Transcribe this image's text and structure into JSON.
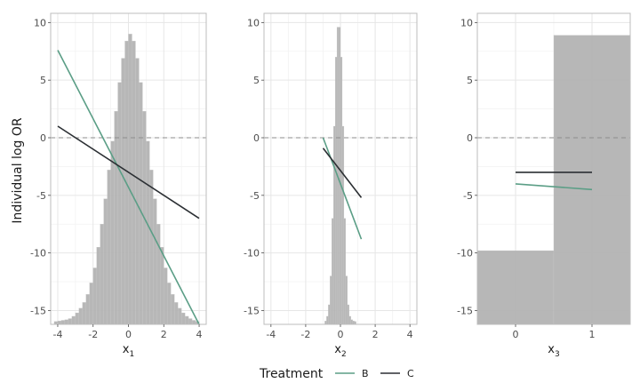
{
  "ylabel": "Individual log OR",
  "legend": {
    "title": "Treatment",
    "placement": "bottom",
    "entries": [
      {
        "label": "B",
        "color": "#5b9e86"
      },
      {
        "label": "C",
        "color": "#2b2f33"
      }
    ]
  },
  "colors": {
    "histogram": "#b3b3b3",
    "grid_major": "#e6e6e6",
    "grid_minor": "#f2f2f2",
    "panel_border": "#bdbdbd",
    "zero_line": "#8c8c8c"
  },
  "chart_data": [
    {
      "type": "line",
      "xlabel": "x",
      "xlabel_sub": "1",
      "xlim": [
        -4.4,
        4.4
      ],
      "ylim": [
        -16.2,
        10.8
      ],
      "xticks": [
        -4,
        -2,
        0,
        2,
        4
      ],
      "xtick_labels": [
        "-4",
        "-2",
        "0",
        "2",
        "4"
      ],
      "yticks": [
        10,
        5,
        0,
        -5,
        -10,
        -15
      ],
      "ytick_labels": [
        "10",
        "5",
        "0",
        "-5",
        "-10",
        "-15"
      ],
      "grid": true,
      "reference_line_y": 0,
      "histogram": {
        "bins": [
          -4.2,
          -4.0,
          -3.8,
          -3.6,
          -3.4,
          -3.2,
          -3.0,
          -2.8,
          -2.6,
          -2.4,
          -2.2,
          -2.0,
          -1.8,
          -1.6,
          -1.4,
          -1.2,
          -1.0,
          -0.8,
          -0.6,
          -0.4,
          -0.2,
          0.0,
          0.2,
          0.4,
          0.6,
          0.8,
          1.0,
          1.2,
          1.4,
          1.6,
          1.8,
          2.0,
          2.2,
          2.4,
          2.6,
          2.8,
          3.0,
          3.2,
          3.4,
          3.6,
          3.8,
          4.0
        ],
        "tops": [
          -15.95,
          -15.9,
          -15.85,
          -15.8,
          -15.7,
          -15.5,
          -15.2,
          -14.8,
          -14.3,
          -13.6,
          -12.6,
          -11.3,
          -9.5,
          -7.5,
          -5.3,
          -2.8,
          -0.3,
          2.3,
          4.8,
          6.9,
          8.4,
          9.0,
          8.4,
          6.9,
          4.8,
          2.3,
          -0.3,
          -2.8,
          -5.3,
          -7.5,
          -9.5,
          -11.3,
          -12.6,
          -13.6,
          -14.3,
          -14.8,
          -15.2,
          -15.5,
          -15.7,
          -15.85,
          -15.95
        ],
        "base": -16.2
      },
      "series": [
        {
          "name": "B",
          "x": [
            -4,
            4
          ],
          "y": [
            7.6,
            -16.2
          ]
        },
        {
          "name": "C",
          "x": [
            -4,
            4
          ],
          "y": [
            1.0,
            -7.0
          ]
        }
      ]
    },
    {
      "type": "line",
      "xlabel": "x",
      "xlabel_sub": "2",
      "xlim": [
        -4.4,
        4.4
      ],
      "ylim": [
        -16.2,
        10.8
      ],
      "xticks": [
        -4,
        -2,
        0,
        2,
        4
      ],
      "xtick_labels": [
        "-4",
        "-2",
        "0",
        "2",
        "4"
      ],
      "yticks": [
        10,
        5,
        0,
        -5,
        -10,
        -15
      ],
      "ytick_labels": [
        "10",
        "5",
        "0",
        "-5",
        "-10",
        "-15"
      ],
      "grid": true,
      "reference_line_y": 0,
      "histogram": {
        "bins": [
          -0.9,
          -0.8,
          -0.7,
          -0.6,
          -0.5,
          -0.4,
          -0.3,
          -0.2,
          -0.1,
          0.0,
          0.1,
          0.2,
          0.3,
          0.4,
          0.5,
          0.6,
          0.7,
          0.8,
          0.9
        ],
        "tops": [
          -15.9,
          -15.5,
          -14.5,
          -12.0,
          -7.0,
          1.0,
          7.0,
          9.6,
          9.6,
          7.0,
          1.0,
          -7.0,
          -12.0,
          -14.5,
          -15.5,
          -15.8,
          -15.9,
          -15.95
        ],
        "base": -16.2
      },
      "series": [
        {
          "name": "B",
          "x": [
            -1.0,
            1.2
          ],
          "y": [
            0.0,
            -8.8
          ]
        },
        {
          "name": "C",
          "x": [
            -1.0,
            1.2
          ],
          "y": [
            -0.9,
            -5.2
          ]
        }
      ]
    },
    {
      "type": "line",
      "xlabel": "x",
      "xlabel_sub": "3",
      "xlim": [
        -0.5,
        1.5
      ],
      "ylim": [
        -16.2,
        10.8
      ],
      "xticks": [
        0,
        1
      ],
      "xtick_labels": [
        "0",
        "1"
      ],
      "yticks": [
        10,
        5,
        0,
        -5,
        -10,
        -15
      ],
      "ytick_labels": [
        "10",
        "5",
        "0",
        "-5",
        "-10",
        "-15"
      ],
      "grid": true,
      "reference_line_y": 0,
      "histogram": {
        "bins": [
          -0.5,
          0.5,
          1.5
        ],
        "tops": [
          -9.8,
          8.9
        ],
        "base": -16.2
      },
      "series": [
        {
          "name": "B",
          "x": [
            0,
            1
          ],
          "y": [
            -4.0,
            -4.5
          ]
        },
        {
          "name": "C",
          "x": [
            0,
            1
          ],
          "y": [
            -3.0,
            -3.0
          ]
        }
      ]
    }
  ]
}
